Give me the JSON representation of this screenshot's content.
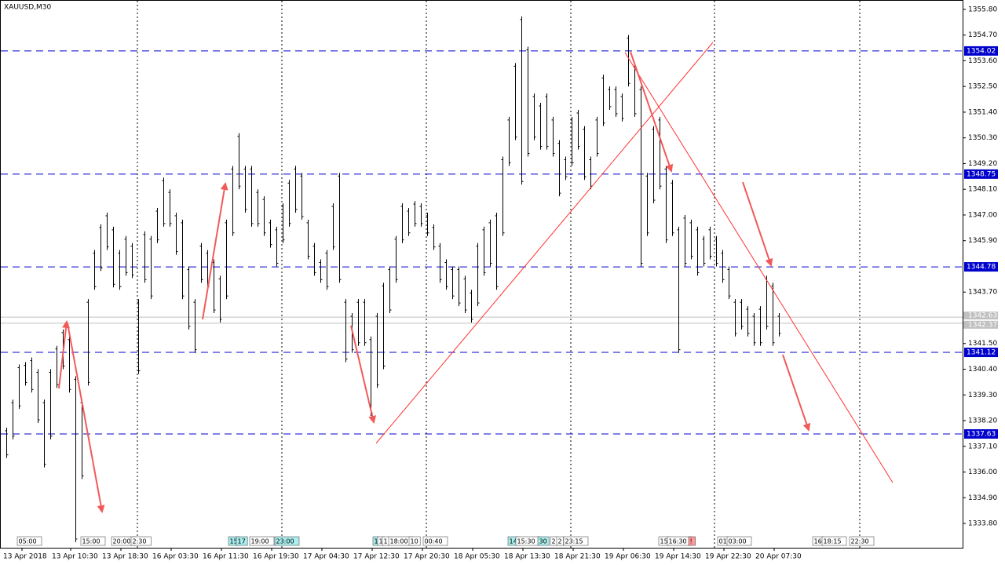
{
  "chart_data": {
    "type": "ohlc",
    "title": "XAUUSD,M30",
    "color": "#000000",
    "ylim": [
      1332.76,
      1356.2
    ],
    "yticks": [
      {
        "value": 1355.8,
        "label": "1355.80"
      },
      {
        "value": 1354.7,
        "label": "1354.70"
      },
      {
        "value": 1353.6,
        "label": "1353.60"
      },
      {
        "value": 1352.5,
        "label": "1352.50"
      },
      {
        "value": 1351.4,
        "label": "1351.40"
      },
      {
        "value": 1350.3,
        "label": "1350.30"
      },
      {
        "value": 1349.2,
        "label": "1349.20"
      },
      {
        "value": 1348.1,
        "label": "1348.10"
      },
      {
        "value": 1347,
        "label": "1347.00"
      },
      {
        "value": 1345.9,
        "label": "1345.90"
      },
      {
        "value": 1343.7,
        "label": "1343.70"
      },
      {
        "value": 1341.5,
        "label": "1341.50"
      },
      {
        "value": 1340.4,
        "label": "1340.40"
      },
      {
        "value": 1339.3,
        "label": "1339.30"
      },
      {
        "value": 1338.2,
        "label": "1338.20"
      },
      {
        "value": 1337.1,
        "label": "1337.10"
      },
      {
        "value": 1336,
        "label": "1336.00"
      },
      {
        "value": 1334.9,
        "label": "1334.90"
      },
      {
        "value": 1333.8,
        "label": "1333.80"
      }
    ],
    "x_labels": [
      "13 Apr 2018",
      "13 Apr 10:30",
      "13 Apr 18:30",
      "16 Apr 03:30",
      "16 Apr 11:30",
      "16 Apr 19:30",
      "17 Apr 04:30",
      "17 Apr 12:30",
      "17 Apr 20:30",
      "18 Apr 05:30",
      "18 Apr 13:30",
      "18 Apr 21:30",
      "19 Apr 06:30",
      "19 Apr 14:30",
      "19 Apr 22:30",
      "20 Apr 07:30"
    ],
    "levels": [
      1354.02,
      1348.75,
      1344.78,
      1341.12,
      1337.63
    ],
    "level_color": "#0000cc",
    "bid_ask": [
      1342.63,
      1342.37
    ],
    "event_tags": [
      "05:00",
      "15:00",
      "20:00",
      "2:30",
      "15",
      "17",
      "19:00",
      "23:00",
      "1",
      "1",
      "1",
      "18:00",
      "10",
      "00:40",
      "14",
      "15:30",
      "30",
      "2",
      "2",
      "23:15",
      "15",
      "16:30",
      "!",
      "01",
      "03:00",
      "16",
      "18:15",
      "22:30"
    ],
    "bars": [
      [
        1337.9,
        1336.6
      ],
      [
        1339.1,
        1337.4
      ],
      [
        1340.6,
        1338.7
      ],
      [
        1340.7,
        1339.7
      ],
      [
        1340.9,
        1339.4
      ],
      [
        1340.4,
        1338.1
      ],
      [
        1339.1,
        1336.2
      ],
      [
        1340.4,
        1337.4
      ],
      [
        1341.4,
        1339.6
      ],
      [
        1342.1,
        1340.4
      ],
      [
        1341.8,
        1339.4
      ],
      [
        1340.1,
        1333.0
      ],
      [
        1339.1,
        1335.7
      ],
      [
        1343.4,
        1339.7
      ],
      [
        1345.5,
        1343.8
      ],
      [
        1346.6,
        1344.6
      ],
      [
        1347.1,
        1345.5
      ],
      [
        1346.5,
        1343.9
      ],
      [
        1345.5,
        1343.8
      ],
      [
        1346.1,
        1344.4
      ],
      [
        1345.8,
        1344.3
      ],
      [
        1343.4,
        1340.2
      ],
      [
        1346.3,
        1344.1
      ],
      [
        1346.1,
        1343.4
      ],
      [
        1347.3,
        1345.8
      ],
      [
        1348.6,
        1346.5
      ],
      [
        1348.1,
        1346.5
      ],
      [
        1347.1,
        1345.3
      ],
      [
        1346.8,
        1343.4
      ],
      [
        1344.8,
        1342.1
      ],
      [
        1343.4,
        1341.1
      ],
      [
        1345.8,
        1344.1
      ],
      [
        1345.5,
        1343.8
      ],
      [
        1345.1,
        1342.8
      ],
      [
        1344.4,
        1342.4
      ],
      [
        1346.8,
        1343.4
      ],
      [
        1349.1,
        1346.1
      ],
      [
        1350.5,
        1348.1
      ],
      [
        1349.1,
        1347.1
      ],
      [
        1349.1,
        1346.5
      ],
      [
        1348.1,
        1346.5
      ],
      [
        1347.8,
        1346.1
      ],
      [
        1346.8,
        1345.6
      ],
      [
        1346.5,
        1344.8
      ],
      [
        1347.5,
        1345.8
      ],
      [
        1348.5,
        1346.5
      ],
      [
        1349.1,
        1347.1
      ],
      [
        1348.8,
        1346.8
      ],
      [
        1346.8,
        1345.1
      ],
      [
        1345.8,
        1344.4
      ],
      [
        1345.1,
        1344.1
      ],
      [
        1345.5,
        1343.8
      ],
      [
        1347.5,
        1345.5
      ],
      [
        1348.8,
        1344.1
      ],
      [
        1343.4,
        1340.7
      ],
      [
        1342.8,
        1341.1
      ],
      [
        1343.4,
        1341.4
      ],
      [
        1343.4,
        1341.4
      ],
      [
        1341.8,
        1338.4
      ],
      [
        1342.8,
        1339.6
      ],
      [
        1344.1,
        1340.4
      ],
      [
        1344.8,
        1342.8
      ],
      [
        1346.1,
        1344.1
      ],
      [
        1347.5,
        1345.8
      ],
      [
        1347.3,
        1346.1
      ],
      [
        1347.6,
        1346.5
      ],
      [
        1347.5,
        1346.5
      ],
      [
        1347.1,
        1346.1
      ],
      [
        1346.6,
        1345.5
      ],
      [
        1345.8,
        1344.1
      ],
      [
        1345.1,
        1343.8
      ],
      [
        1344.8,
        1343.4
      ],
      [
        1344.8,
        1343.1
      ],
      [
        1344.4,
        1342.8
      ],
      [
        1343.8,
        1342.4
      ],
      [
        1345.8,
        1343.1
      ],
      [
        1346.5,
        1344.4
      ],
      [
        1346.8,
        1344.8
      ],
      [
        1347.1,
        1343.8
      ],
      [
        1349.5,
        1346.1
      ],
      [
        1351.2,
        1349.1
      ],
      [
        1353.5,
        1350.2
      ],
      [
        1355.5,
        1348.3
      ],
      [
        1354.2,
        1349.5
      ],
      [
        1352.2,
        1350.2
      ],
      [
        1351.8,
        1349.8
      ],
      [
        1352.2,
        1349.8
      ],
      [
        1351.2,
        1349.5
      ],
      [
        1350.2,
        1347.8
      ],
      [
        1349.5,
        1348.5
      ],
      [
        1351.2,
        1349.1
      ],
      [
        1351.5,
        1349.8
      ],
      [
        1350.8,
        1348.5
      ],
      [
        1349.5,
        1348.1
      ],
      [
        1351.2,
        1349.5
      ],
      [
        1353.0,
        1350.8
      ],
      [
        1352.5,
        1351.5
      ],
      [
        1352.5,
        1351.2
      ],
      [
        1352.2,
        1351.0
      ],
      [
        1354.7,
        1352.5
      ],
      [
        1353.5,
        1351.2
      ],
      [
        1352.5,
        1344.8
      ],
      [
        1348.8,
        1346.1
      ],
      [
        1350.8,
        1347.5
      ],
      [
        1351.2,
        1348.1
      ],
      [
        1349.1,
        1345.8
      ],
      [
        1348.5,
        1346.1
      ],
      [
        1346.5,
        1341.1
      ],
      [
        1347.0,
        1344.8
      ],
      [
        1346.8,
        1345.1
      ],
      [
        1346.5,
        1344.4
      ],
      [
        1346.1,
        1344.8
      ],
      [
        1346.5,
        1345.1
      ],
      [
        1346.1,
        1344.8
      ],
      [
        1345.5,
        1344.1
      ],
      [
        1344.8,
        1343.4
      ],
      [
        1343.4,
        1341.8
      ],
      [
        1343.4,
        1342.1
      ],
      [
        1343.1,
        1341.8
      ],
      [
        1342.8,
        1341.4
      ],
      [
        1343.1,
        1341.4
      ],
      [
        1344.4,
        1342.1
      ],
      [
        1344.1,
        1341.4
      ],
      [
        1342.8,
        1341.8
      ]
    ]
  }
}
